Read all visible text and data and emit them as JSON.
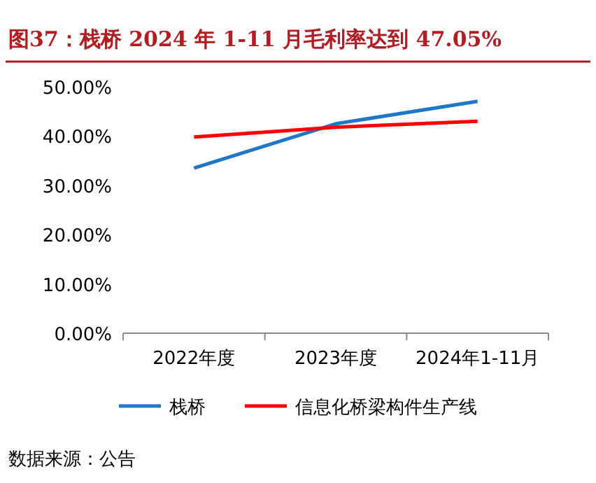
{
  "chart_data": {
    "type": "line",
    "title": "图37：栈桥 2024 年 1-11 月毛利率达到 47.05%",
    "categories": [
      "2022年度",
      "2023年度",
      "2024年1-11月"
    ],
    "series": [
      {
        "name": "栈桥",
        "color": "#1f77c8",
        "values": [
          33.5,
          42.5,
          47.05
        ]
      },
      {
        "name": "信息化桥梁构件生产线",
        "color": "#ff0000",
        "values": [
          39.8,
          41.8,
          43.0
        ]
      }
    ],
    "ylim": [
      0,
      50
    ],
    "yticks": [
      {
        "value": 0,
        "label": "0.00%"
      },
      {
        "value": 10,
        "label": "10.00%"
      },
      {
        "value": 20,
        "label": "20.00%"
      },
      {
        "value": 30,
        "label": "30.00%"
      },
      {
        "value": 40,
        "label": "40.00%"
      },
      {
        "value": 50,
        "label": "50.00%"
      }
    ],
    "legend": "bottom",
    "grid": false,
    "marker": "none",
    "line_style": "solid",
    "annotations": [
      "数据来源：公告"
    ]
  }
}
